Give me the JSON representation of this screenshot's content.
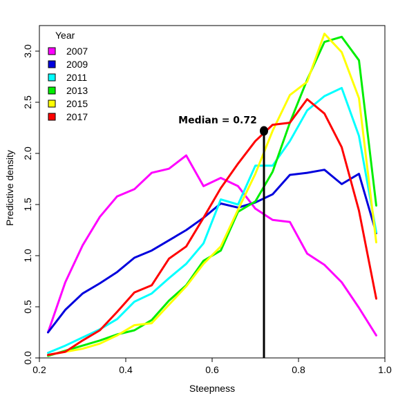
{
  "chart_data": {
    "type": "line",
    "xlabel": "Steepness",
    "ylabel": "Predictive density",
    "xlim": [
      0.2,
      1.0
    ],
    "ylim": [
      0.0,
      3.25
    ],
    "x_ticks": [
      "0.2",
      "0.4",
      "0.6",
      "0.8",
      "1.0"
    ],
    "y_ticks": [
      "0.0",
      "0.5",
      "1.0",
      "1.5",
      "2.0",
      "2.5",
      "3.0"
    ],
    "x_tick_values": [
      0.2,
      0.4,
      0.6,
      0.8,
      1.0
    ],
    "y_tick_values": [
      0.0,
      0.5,
      1.0,
      1.5,
      2.0,
      2.5,
      3.0
    ],
    "grid": false,
    "legend": {
      "title": "Year",
      "placement": "top-left"
    },
    "annotation": {
      "label": "Median = 0.72",
      "x": 0.72,
      "y": 2.22,
      "line_from_y": 0.0
    },
    "x": [
      0.22,
      0.26,
      0.3,
      0.34,
      0.38,
      0.42,
      0.46,
      0.5,
      0.54,
      0.58,
      0.62,
      0.66,
      0.7,
      0.74,
      0.78,
      0.82,
      0.86,
      0.9,
      0.94,
      0.98
    ],
    "series": [
      {
        "name": "2007",
        "color": "#ff00ff",
        "values": [
          0.25,
          0.74,
          1.1,
          1.38,
          1.58,
          1.65,
          1.81,
          1.85,
          1.98,
          1.68,
          1.76,
          1.68,
          1.46,
          1.35,
          1.33,
          1.02,
          0.91,
          0.74,
          0.49,
          0.22
        ]
      },
      {
        "name": "2009",
        "color": "#0000dd",
        "values": [
          0.25,
          0.47,
          0.63,
          0.73,
          0.84,
          0.98,
          1.05,
          1.15,
          1.25,
          1.37,
          1.51,
          1.47,
          1.52,
          1.6,
          1.79,
          1.81,
          1.84,
          1.7,
          1.8,
          1.22
        ]
      },
      {
        "name": "2011",
        "color": "#00ffff",
        "values": [
          0.05,
          0.12,
          0.2,
          0.28,
          0.38,
          0.55,
          0.63,
          0.78,
          0.92,
          1.12,
          1.55,
          1.5,
          1.88,
          1.88,
          2.12,
          2.42,
          2.56,
          2.64,
          2.17,
          1.23
        ]
      },
      {
        "name": "2013",
        "color": "#00ee00",
        "values": [
          0.02,
          0.07,
          0.12,
          0.17,
          0.23,
          0.27,
          0.37,
          0.56,
          0.71,
          0.95,
          1.05,
          1.43,
          1.53,
          1.82,
          2.3,
          2.72,
          3.09,
          3.14,
          2.91,
          1.49
        ]
      },
      {
        "name": "2015",
        "color": "#ffff00",
        "values": [
          0.03,
          0.06,
          0.09,
          0.14,
          0.22,
          0.32,
          0.34,
          0.52,
          0.7,
          0.92,
          1.09,
          1.45,
          1.8,
          2.22,
          2.57,
          2.7,
          3.17,
          2.99,
          2.54,
          1.13
        ]
      },
      {
        "name": "2017",
        "color": "#ff0000",
        "values": [
          0.03,
          0.06,
          0.17,
          0.27,
          0.45,
          0.64,
          0.71,
          0.97,
          1.09,
          1.37,
          1.66,
          1.9,
          2.12,
          2.28,
          2.3,
          2.53,
          2.39,
          2.06,
          1.44,
          0.58
        ]
      }
    ]
  }
}
